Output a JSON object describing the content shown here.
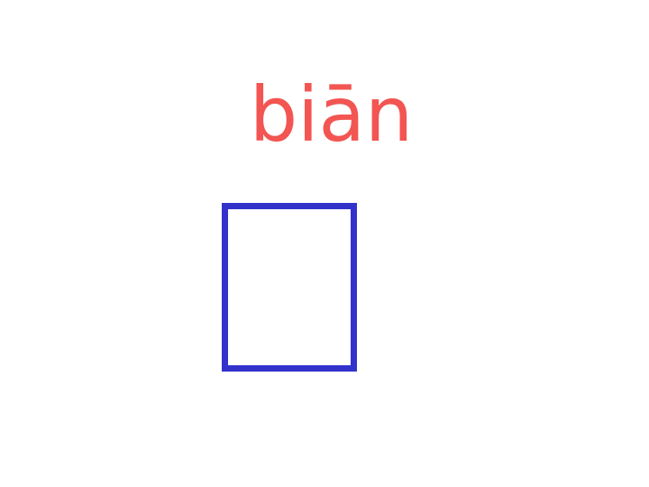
{
  "pinyin": {
    "text": "biān",
    "color": "#f25552"
  },
  "character_box": {
    "border_color": "#3333cc",
    "content": ""
  }
}
